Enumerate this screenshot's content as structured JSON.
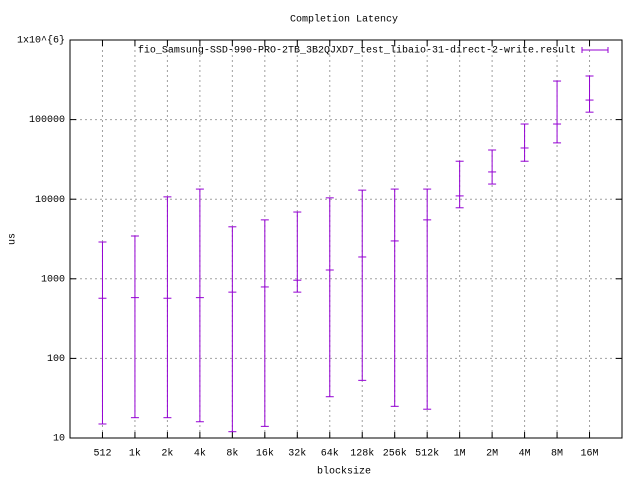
{
  "chart_data": {
    "type": "errorbar",
    "title": "Completion Latency",
    "xlabel": "blocksize",
    "ylabel": "us",
    "categories": [
      "512",
      "1k",
      "2k",
      "4k",
      "8k",
      "16k",
      "32k",
      "64k",
      "128k",
      "256k",
      "512k",
      "1M",
      "2M",
      "4M",
      "8M",
      "16M"
    ],
    "series": [
      {
        "name": "fio_Samsung-SSD-990-PRO-2TB_3B2QJXD7_test_libaio-31-direct-2-write.result",
        "color": "#9400d3",
        "values": [
          570,
          580,
          570,
          580,
          680,
          790,
          960,
          1290,
          1880,
          2990,
          5500,
          11000,
          22000,
          44000,
          88000,
          176000
        ],
        "lows": [
          15,
          18,
          18,
          16,
          12,
          14,
          680,
          33,
          53,
          25,
          23,
          7800,
          15500,
          30000,
          51000,
          124000
        ],
        "highs": [
          2900,
          3450,
          10700,
          13400,
          4500,
          5500,
          6900,
          10400,
          13000,
          13400,
          13400,
          30000,
          41500,
          88000,
          305000,
          353000
        ]
      }
    ],
    "ylim": [
      10,
      1000000
    ],
    "yticks": [
      10,
      100,
      1000,
      10000,
      100000,
      {
        "value": 1000000,
        "label": "1x10^{6}"
      }
    ],
    "log_y": true,
    "grid": true,
    "legend": "top-right"
  }
}
